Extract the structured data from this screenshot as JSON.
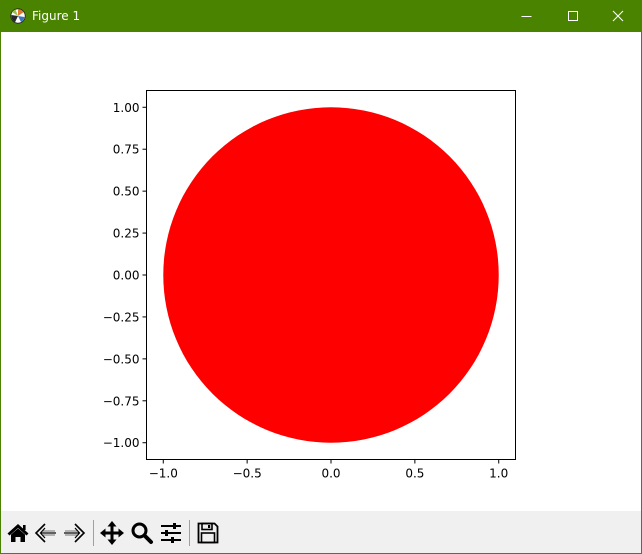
{
  "window": {
    "title": "Figure 1",
    "accent_color": "#4a8300",
    "icons": {
      "app": "matplotlib-icon",
      "minimize": "minimize-icon",
      "maximize": "maximize-icon",
      "close": "close-icon"
    }
  },
  "toolbar": {
    "items": [
      {
        "name": "home-button",
        "icon": "home-icon"
      },
      {
        "name": "back-button",
        "icon": "arrow-left-icon"
      },
      {
        "name": "forward-button",
        "icon": "arrow-right-icon"
      },
      {
        "name": "pan-button",
        "icon": "move-icon"
      },
      {
        "name": "zoom-button",
        "icon": "magnifier-icon"
      },
      {
        "name": "configure-subplots-button",
        "icon": "sliders-icon"
      },
      {
        "name": "save-button",
        "icon": "floppy-disk-icon"
      }
    ]
  },
  "chart_data": {
    "type": "scatter",
    "shape": "filled circle",
    "center": [
      0.0,
      0.0
    ],
    "radius": 1.0,
    "color": "#ff0000",
    "title": "",
    "xlabel": "",
    "ylabel": "",
    "xlim": [
      -1.1,
      1.1
    ],
    "ylim": [
      -1.1,
      1.1
    ],
    "xticks": [
      -1.0,
      -0.5,
      0.0,
      0.5,
      1.0
    ],
    "xtick_labels": [
      "−1.0",
      "−0.5",
      "0.0",
      "0.5",
      "1.0"
    ],
    "yticks": [
      1.0,
      0.75,
      0.5,
      0.25,
      0.0,
      -0.25,
      -0.5,
      -0.75,
      -1.0
    ],
    "ytick_labels": [
      "1.00",
      "0.75",
      "0.50",
      "0.25",
      "0.00",
      "−0.25",
      "−0.50",
      "−0.75",
      "−1.00"
    ],
    "grid": false,
    "legend": "none"
  }
}
